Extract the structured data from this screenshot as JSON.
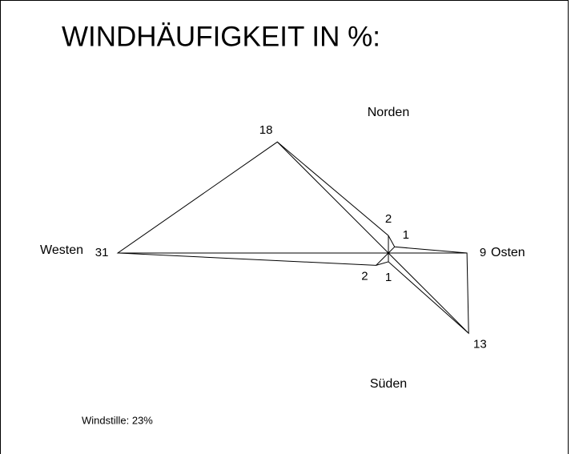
{
  "chart_data": {
    "type": "windrose",
    "title": "WINDHÄUFIGKEIT IN %:",
    "categories": [
      "Norden",
      null,
      "Osten",
      null,
      "Süden",
      null,
      "Westen",
      null
    ],
    "values": [
      2,
      1,
      9,
      13,
      1,
      2,
      31,
      18
    ],
    "color": "#000000",
    "annotation": "Windstille: 23%"
  }
}
